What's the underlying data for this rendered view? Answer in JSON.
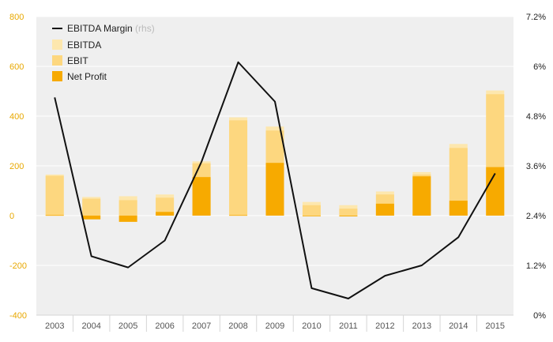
{
  "chart_data": {
    "type": "bar+line",
    "title": "",
    "categories": [
      "2003",
      "2004",
      "2005",
      "2006",
      "2007",
      "2008",
      "2009",
      "2010",
      "2011",
      "2012",
      "2013",
      "2014",
      "2015"
    ],
    "series": [
      {
        "name": "EBITDA",
        "axis": "left",
        "kind": "bar",
        "color": "#fde7ae",
        "values": [
          165,
          75,
          78,
          85,
          218,
          395,
          358,
          55,
          42,
          97,
          175,
          288,
          503
        ]
      },
      {
        "name": "EBIT",
        "axis": "left",
        "kind": "bar",
        "color": "#fdd77f",
        "values": [
          160,
          68,
          62,
          72,
          210,
          383,
          342,
          42,
          28,
          85,
          165,
          272,
          488
        ]
      },
      {
        "name": "Net Profit",
        "axis": "left",
        "kind": "bar",
        "color": "#f7aa00",
        "values": [
          2,
          -15,
          -25,
          15,
          155,
          2,
          212,
          0,
          -3,
          48,
          158,
          60,
          195
        ]
      },
      {
        "name": "EBITDA Margin",
        "suffix": "(rhs)",
        "axis": "right",
        "kind": "line",
        "color": "#111111",
        "values": [
          5.25,
          1.42,
          1.15,
          1.8,
          3.7,
          6.1,
          5.15,
          0.65,
          0.4,
          0.95,
          1.2,
          1.88,
          3.42
        ]
      }
    ],
    "y_left": {
      "min": -400,
      "max": 800,
      "ticks": [
        800,
        600,
        400,
        200,
        0,
        -200,
        -400
      ],
      "tick_labels": [
        "800",
        "600",
        "400",
        "200",
        "0",
        "-200",
        "-400"
      ]
    },
    "y_right": {
      "min": 0,
      "max": 7.2,
      "ticks": [
        7.2,
        6,
        4.8,
        3.6,
        2.4,
        1.2,
        0
      ],
      "tick_labels": [
        "7.2%",
        "6%",
        "4.8%",
        "3.6%",
        "2.4%",
        "1.2%",
        "0%"
      ]
    },
    "grid": true,
    "legend_position": "top-left"
  }
}
